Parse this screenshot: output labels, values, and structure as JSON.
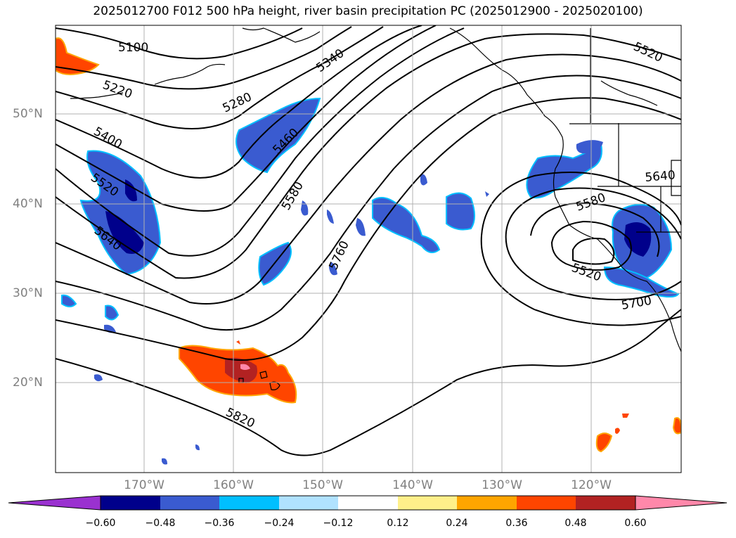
{
  "title": "2025012700 F012 500 hPa height, river basin precipitation PC (2025012900 - 2025020100)",
  "lat_labels": [
    "50°N",
    "40°N",
    "30°N",
    "20°N"
  ],
  "lon_labels": [
    "170°W",
    "160°W",
    "150°W",
    "140°W",
    "130°W",
    "120°W"
  ],
  "contour_labels": [
    "5100",
    "5220",
    "5280",
    "5340",
    "5400",
    "5460",
    "5520",
    "5580",
    "5640",
    "5760",
    "5820",
    "5520",
    "5580",
    "5640",
    "5700",
    "5520"
  ],
  "colorbar": {
    "ticks": [
      "−0.60",
      "−0.48",
      "−0.36",
      "−0.24",
      "−0.12",
      "0.12",
      "0.24",
      "0.36",
      "0.48",
      "0.60"
    ],
    "colors": [
      "#9a31d0",
      "#00008b",
      "#3a5bd0",
      "#00bfff",
      "#b0e2ff",
      "#ffffff",
      "#fff08a",
      "#ffa500",
      "#ff4500",
      "#b22222",
      "#ff88aa"
    ]
  },
  "colors": {
    "land_outline": "#000000",
    "grid": "#b0b0b0",
    "contour": "#000000",
    "neg_light": "#00bfff",
    "neg_mid": "#3a5bd0",
    "neg_dark": "#00008b",
    "pos_mid": "#ff4500",
    "pos_dark": "#b22222",
    "pos_light": "#ffa500",
    "pos_pink": "#ff88aa"
  }
}
